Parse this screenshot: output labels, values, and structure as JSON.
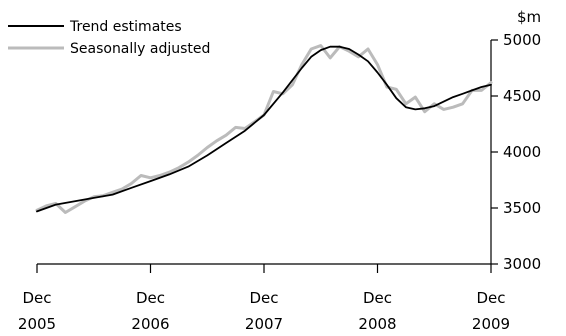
{
  "chart_data": {
    "type": "line",
    "title": "",
    "xlabel": "",
    "ylabel": "$m",
    "x_ticks": [
      {
        "line1": "Dec",
        "line2": "2005",
        "x": 2005.917
      },
      {
        "line1": "Dec",
        "line2": "2006",
        "x": 2006.917
      },
      {
        "line1": "Dec",
        "line2": "2007",
        "x": 2007.917
      },
      {
        "line1": "Dec",
        "line2": "2008",
        "x": 2008.917
      },
      {
        "line1": "Dec",
        "line2": "2009",
        "x": 2009.917
      }
    ],
    "xlim": [
      2005.917,
      2009.917
    ],
    "ylim": [
      3000,
      5000
    ],
    "y_ticks": [
      3000,
      3500,
      4000,
      4500,
      5000
    ],
    "y_tick_labels": [
      "3000",
      "3500",
      "4000",
      "4500",
      "5000"
    ],
    "grid": false,
    "legend_position": "top-left",
    "series": [
      {
        "name": "Trend estimates",
        "color": "#000000",
        "x": [
          2005.917,
          2006.083,
          2006.25,
          2006.417,
          2006.583,
          2006.75,
          2006.917,
          2007.083,
          2007.25,
          2007.417,
          2007.583,
          2007.75,
          2007.917,
          2008.083,
          2008.25,
          2008.333,
          2008.417,
          2008.5,
          2008.583,
          2008.667,
          2008.75,
          2008.833,
          2008.917,
          2009.0,
          2009.083,
          2009.167,
          2009.25,
          2009.333,
          2009.417,
          2009.5,
          2009.583,
          2009.667,
          2009.75,
          2009.833,
          2009.917
        ],
        "y": [
          3470,
          3530,
          3560,
          3590,
          3620,
          3680,
          3740,
          3800,
          3870,
          3970,
          4080,
          4190,
          4330,
          4530,
          4750,
          4850,
          4910,
          4940,
          4940,
          4920,
          4870,
          4810,
          4710,
          4600,
          4480,
          4400,
          4380,
          4390,
          4410,
          4450,
          4490,
          4520,
          4550,
          4580,
          4600
        ]
      },
      {
        "name": "Seasonally adjusted",
        "color": "#bbbbbb",
        "x": [
          2005.917,
          2006.0,
          2006.083,
          2006.167,
          2006.25,
          2006.333,
          2006.417,
          2006.5,
          2006.583,
          2006.667,
          2006.75,
          2006.833,
          2006.917,
          2007.0,
          2007.083,
          2007.167,
          2007.25,
          2007.333,
          2007.417,
          2007.5,
          2007.583,
          2007.667,
          2007.75,
          2007.833,
          2007.917,
          2008.0,
          2008.083,
          2008.167,
          2008.25,
          2008.333,
          2008.417,
          2008.5,
          2008.583,
          2008.667,
          2008.75,
          2008.833,
          2008.917,
          2009.0,
          2009.083,
          2009.167,
          2009.25,
          2009.333,
          2009.417,
          2009.5,
          2009.583,
          2009.667,
          2009.75,
          2009.833,
          2009.917
        ],
        "y": [
          3480,
          3520,
          3540,
          3460,
          3510,
          3560,
          3600,
          3610,
          3640,
          3670,
          3720,
          3790,
          3770,
          3790,
          3820,
          3860,
          3910,
          3970,
          4040,
          4100,
          4150,
          4220,
          4210,
          4270,
          4330,
          4540,
          4520,
          4600,
          4780,
          4920,
          4950,
          4840,
          4940,
          4900,
          4850,
          4920,
          4780,
          4580,
          4560,
          4430,
          4490,
          4360,
          4430,
          4380,
          4400,
          4430,
          4550,
          4550,
          4620
        ]
      }
    ]
  }
}
